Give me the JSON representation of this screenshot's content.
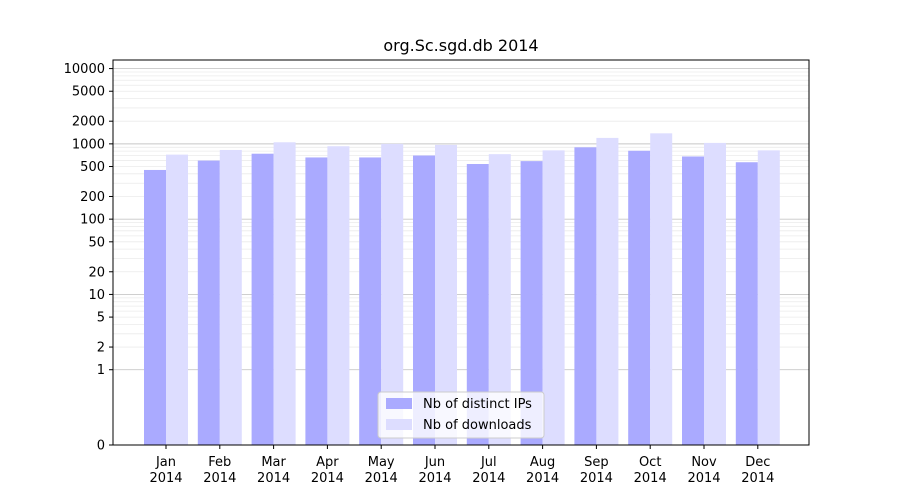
{
  "chart_data": {
    "type": "bar",
    "title": "org.Sc.sgd.db 2014",
    "xlabel": "",
    "ylabel": "",
    "y_scale": "symlog",
    "ylim": [
      0,
      13000
    ],
    "yticks": [
      0,
      1,
      2,
      5,
      10,
      20,
      50,
      100,
      200,
      500,
      1000,
      2000,
      5000,
      10000
    ],
    "ytick_labels": [
      "0",
      "1",
      "2",
      "5",
      "10",
      "20",
      "50",
      "100",
      "200",
      "500",
      "1000",
      "2000",
      "5000",
      "10000"
    ],
    "categories": [
      "Jan\n2014",
      "Feb\n2014",
      "Mar\n2014",
      "Apr\n2014",
      "May\n2014",
      "Jun\n2014",
      "Jul\n2014",
      "Aug\n2014",
      "Sep\n2014",
      "Oct\n2014",
      "Nov\n2014",
      "Dec\n2014"
    ],
    "series": [
      {
        "name": "Nb of distinct IPs",
        "color": "#aaaaff",
        "values": [
          450,
          600,
          740,
          660,
          660,
          700,
          540,
          590,
          900,
          810,
          680,
          570
        ]
      },
      {
        "name": "Nb of downloads",
        "color": "#ddddff",
        "values": [
          720,
          830,
          1050,
          930,
          1000,
          970,
          730,
          820,
          1200,
          1380,
          1030,
          820
        ]
      }
    ],
    "grid": true,
    "legend_position": "lower-center"
  }
}
